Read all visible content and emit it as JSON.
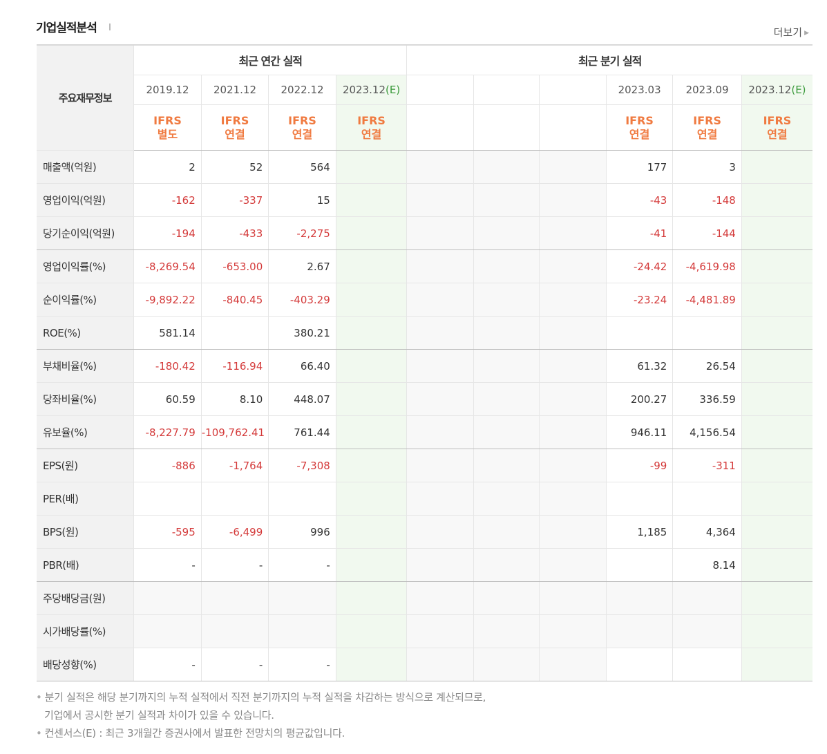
{
  "section": {
    "title": "기업실적분석",
    "more_label": "더보기"
  },
  "header": {
    "corner": "주요재무정보",
    "annual_group": "최근 연간 실적",
    "quarter_group": "최근 분기 실적",
    "annual_periods": [
      "2019.12",
      "2021.12",
      "2022.12",
      "2023.12"
    ],
    "quarter_periods": [
      "",
      "",
      "",
      "2023.03",
      "2023.09",
      "2023.12"
    ],
    "estimate_suffix": "(E)",
    "annual_ifrs": [
      [
        "IFRS",
        "별도"
      ],
      [
        "IFRS",
        "연결"
      ],
      [
        "IFRS",
        "연결"
      ],
      [
        "IFRS",
        "연결"
      ]
    ],
    "quarter_ifrs": [
      [
        "",
        ""
      ],
      [
        "",
        ""
      ],
      [
        "",
        ""
      ],
      [
        "IFRS",
        "연결"
      ],
      [
        "IFRS",
        "연결"
      ],
      [
        "IFRS",
        "연결"
      ]
    ]
  },
  "rows": [
    {
      "label": "매출액(억원)",
      "annual": [
        "2",
        "52",
        "564",
        ""
      ],
      "quarter": [
        "",
        "",
        "",
        "177",
        "3",
        ""
      ]
    },
    {
      "label": "영업이익(억원)",
      "annual": [
        "-162",
        "-337",
        "15",
        ""
      ],
      "quarter": [
        "",
        "",
        "",
        "-43",
        "-148",
        ""
      ]
    },
    {
      "label": "당기순이익(억원)",
      "annual": [
        "-194",
        "-433",
        "-2,275",
        ""
      ],
      "quarter": [
        "",
        "",
        "",
        "-41",
        "-144",
        ""
      ]
    },
    {
      "label": "영업이익률(%)",
      "annual": [
        "-8,269.54",
        "-653.00",
        "2.67",
        ""
      ],
      "quarter": [
        "",
        "",
        "",
        "-24.42",
        "-4,619.98",
        ""
      ]
    },
    {
      "label": "순이익률(%)",
      "annual": [
        "-9,892.22",
        "-840.45",
        "-403.29",
        ""
      ],
      "quarter": [
        "",
        "",
        "",
        "-23.24",
        "-4,481.89",
        ""
      ]
    },
    {
      "label": "ROE(%)",
      "annual": [
        "581.14",
        "",
        "380.21",
        ""
      ],
      "quarter": [
        "",
        "",
        "",
        "",
        "",
        ""
      ]
    },
    {
      "label": "부채비율(%)",
      "annual": [
        "-180.42",
        "-116.94",
        "66.40",
        ""
      ],
      "quarter": [
        "",
        "",
        "",
        "61.32",
        "26.54",
        ""
      ]
    },
    {
      "label": "당좌비율(%)",
      "annual": [
        "60.59",
        "8.10",
        "448.07",
        ""
      ],
      "quarter": [
        "",
        "",
        "",
        "200.27",
        "336.59",
        ""
      ]
    },
    {
      "label": "유보율(%)",
      "annual": [
        "-8,227.79",
        "-109,762.41",
        "761.44",
        ""
      ],
      "quarter": [
        "",
        "",
        "",
        "946.11",
        "4,156.54",
        ""
      ]
    },
    {
      "label": "EPS(원)",
      "annual": [
        "-886",
        "-1,764",
        "-7,308",
        ""
      ],
      "quarter": [
        "",
        "",
        "",
        "-99",
        "-311",
        ""
      ]
    },
    {
      "label": "PER(배)",
      "annual": [
        "",
        "",
        "",
        ""
      ],
      "quarter": [
        "",
        "",
        "",
        "",
        "",
        ""
      ]
    },
    {
      "label": "BPS(원)",
      "annual": [
        "-595",
        "-6,499",
        "996",
        ""
      ],
      "quarter": [
        "",
        "",
        "",
        "1,185",
        "4,364",
        ""
      ]
    },
    {
      "label": "PBR(배)",
      "annual": [
        "-",
        "-",
        "-",
        ""
      ],
      "quarter": [
        "",
        "",
        "",
        "",
        "8.14",
        ""
      ]
    },
    {
      "label": "주당배당금(원)",
      "annual": [
        "",
        "",
        "",
        ""
      ],
      "quarter": [
        "",
        "",
        "",
        "",
        "",
        ""
      ]
    },
    {
      "label": "시가배당률(%)",
      "annual": [
        "",
        "",
        "",
        ""
      ],
      "quarter": [
        "",
        "",
        "",
        "",
        "",
        ""
      ]
    },
    {
      "label": "배당성향(%)",
      "annual": [
        "-",
        "-",
        "-",
        ""
      ],
      "quarter": [
        "",
        "",
        "",
        "",
        "",
        ""
      ]
    }
  ],
  "notes": [
    "분기 실적은 해당 분기까지의 누적 실적에서 직전 분기까지의 누적 실적을 차감하는 방식으로 계산되므로,",
    "기업에서 공시한 분기 실적과 차이가 있을 수 있습니다.",
    "컨센서스(E) : 최근 3개월간 증권사에서 발표한 전망치의 평균값입니다."
  ],
  "colors": {
    "negative": "#d43a3a",
    "ifrs": "#f07a40",
    "estimate_bg": "#f1f9ef",
    "estimate_text": "#3a9a3a"
  }
}
